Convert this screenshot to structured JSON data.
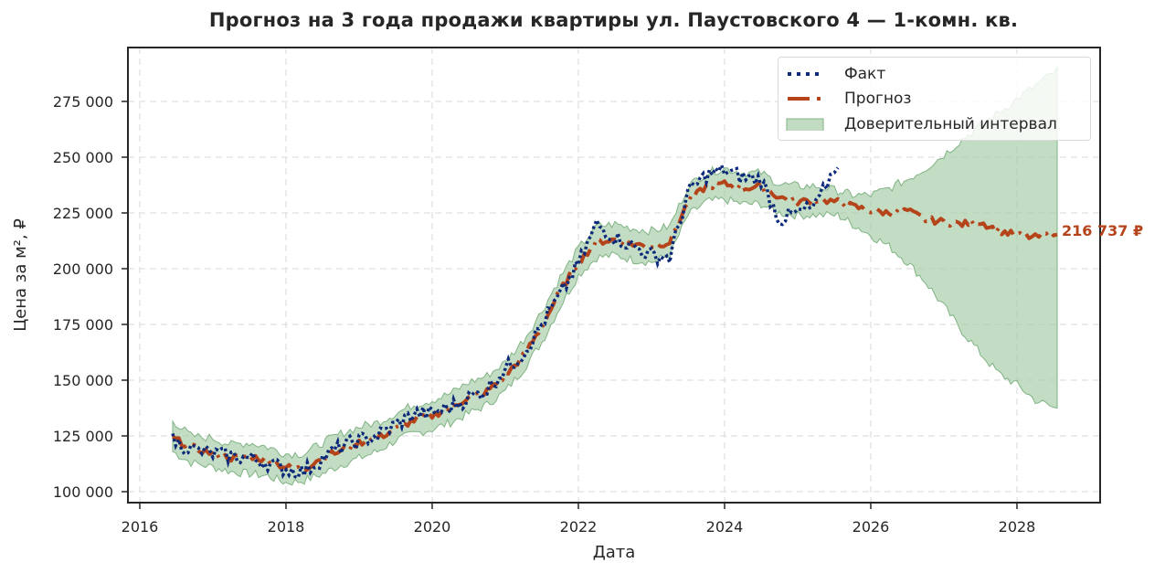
{
  "title": "Прогноз на 3 года продажи квартиры  ул. Паустовского 4 — 1-комн. кв.",
  "axes": {
    "xlabel": "Дата",
    "ylabel": "Цена за м², ₽",
    "x_ticks": [
      "2016",
      "2018",
      "2020",
      "2022",
      "2024",
      "2026",
      "2028"
    ],
    "y_ticks": [
      "100 000",
      "125 000",
      "150 000",
      "175 000",
      "200 000",
      "225 000",
      "250 000",
      "275 000"
    ]
  },
  "legend": {
    "items": [
      {
        "label": "Факт",
        "style": "dotted",
        "color": "#0d2a7a"
      },
      {
        "label": "Прогноз",
        "style": "dash-dot",
        "color": "#b5441a"
      },
      {
        "label": "Доверительный интервал",
        "style": "fill",
        "color": "#a7cda8"
      }
    ]
  },
  "end_label": {
    "text": "216 737 ₽",
    "color": "#b5441a"
  },
  "colors": {
    "fact": "#0d2a7a",
    "forecast": "#b5441a",
    "band_fill": "#a7cda8",
    "band_edge": "#7fb383",
    "grid": "#dddddd",
    "frame": "#262626"
  },
  "chart_data": {
    "type": "line",
    "title": "Прогноз на 3 года продажи квартиры  ул. Паустовского 4 — 1-комн. кв.",
    "xlabel": "Дата",
    "ylabel": "Цена за м², ₽",
    "xlim": [
      2015.8,
      2029.1
    ],
    "ylim": [
      95000,
      299000
    ],
    "grid": true,
    "legend_position": "upper right",
    "x": [
      2016.45,
      2016.7,
      2017.0,
      2017.25,
      2017.5,
      2017.75,
      2018.0,
      2018.25,
      2018.5,
      2018.75,
      2019.0,
      2019.25,
      2019.5,
      2019.75,
      2020.0,
      2020.25,
      2020.5,
      2020.75,
      2021.0,
      2021.25,
      2021.5,
      2021.75,
      2022.0,
      2022.25,
      2022.5,
      2022.75,
      2023.0,
      2023.25,
      2023.5,
      2023.75,
      2024.0,
      2024.25,
      2024.5,
      2024.75,
      2025.0,
      2025.25,
      2025.55,
      2025.75,
      2026.0,
      2026.25,
      2026.5,
      2026.75,
      2027.0,
      2027.25,
      2027.5,
      2027.75,
      2028.0,
      2028.25,
      2028.55
    ],
    "series": [
      {
        "name": "Факт",
        "values": [
          123000,
          119000,
          117000,
          116000,
          115000,
          113000,
          110000,
          109000,
          115000,
          120000,
          123000,
          125000,
          130000,
          135000,
          135000,
          138000,
          142000,
          146000,
          155000,
          162000,
          175000,
          188000,
          202000,
          220000,
          214000,
          210000,
          206000,
          205000,
          234000,
          242000,
          244000,
          241000,
          240000,
          222000,
          225000,
          228000,
          248000,
          null,
          null,
          null,
          null,
          null,
          null,
          null,
          null,
          null,
          null,
          null,
          null
        ]
      },
      {
        "name": "Прогноз",
        "values": [
          124000,
          120000,
          117000,
          115000,
          116000,
          114000,
          111000,
          110000,
          116000,
          118000,
          122000,
          124000,
          128000,
          132000,
          134000,
          138000,
          142000,
          145000,
          152000,
          161000,
          174000,
          190000,
          203000,
          212000,
          213000,
          211000,
          210000,
          212000,
          230000,
          237000,
          238000,
          236000,
          237000,
          232000,
          230000,
          231000,
          230000,
          228000,
          226000,
          225000,
          226000,
          222000,
          221000,
          220000,
          221000,
          217000,
          215000,
          214000,
          216737
        ]
      },
      {
        "name": "Доверительный интервал (нижн.)",
        "values": [
          118000,
          113000,
          111000,
          109000,
          108000,
          107000,
          104000,
          105000,
          108000,
          112000,
          115000,
          118000,
          123000,
          126000,
          128000,
          131000,
          135000,
          139000,
          145000,
          155000,
          167000,
          183000,
          197000,
          205000,
          206000,
          204000,
          203000,
          206000,
          224000,
          230000,
          231000,
          229000,
          229000,
          225000,
          224000,
          224000,
          224000,
          220000,
          215000,
          210000,
          203000,
          194000,
          183000,
          172000,
          162000,
          153000,
          148000,
          141000,
          137000
        ]
      },
      {
        "name": "Доверительный интервал (верхн.)",
        "values": [
          132000,
          125000,
          124000,
          121000,
          122000,
          120000,
          117000,
          117000,
          122000,
          126000,
          129000,
          131000,
          135000,
          139000,
          141000,
          144000,
          149000,
          152000,
          158000,
          168000,
          181000,
          196000,
          209000,
          219000,
          220000,
          218000,
          217000,
          219000,
          237000,
          243000,
          245000,
          243000,
          243000,
          238000,
          237000,
          237000,
          235000,
          233000,
          233000,
          236000,
          240000,
          245000,
          251000,
          258000,
          264000,
          270000,
          276000,
          282000,
          289000
        ]
      }
    ],
    "annotations": [
      {
        "x": 2028.55,
        "y": 216737,
        "text": "216 737 ₽"
      }
    ]
  }
}
